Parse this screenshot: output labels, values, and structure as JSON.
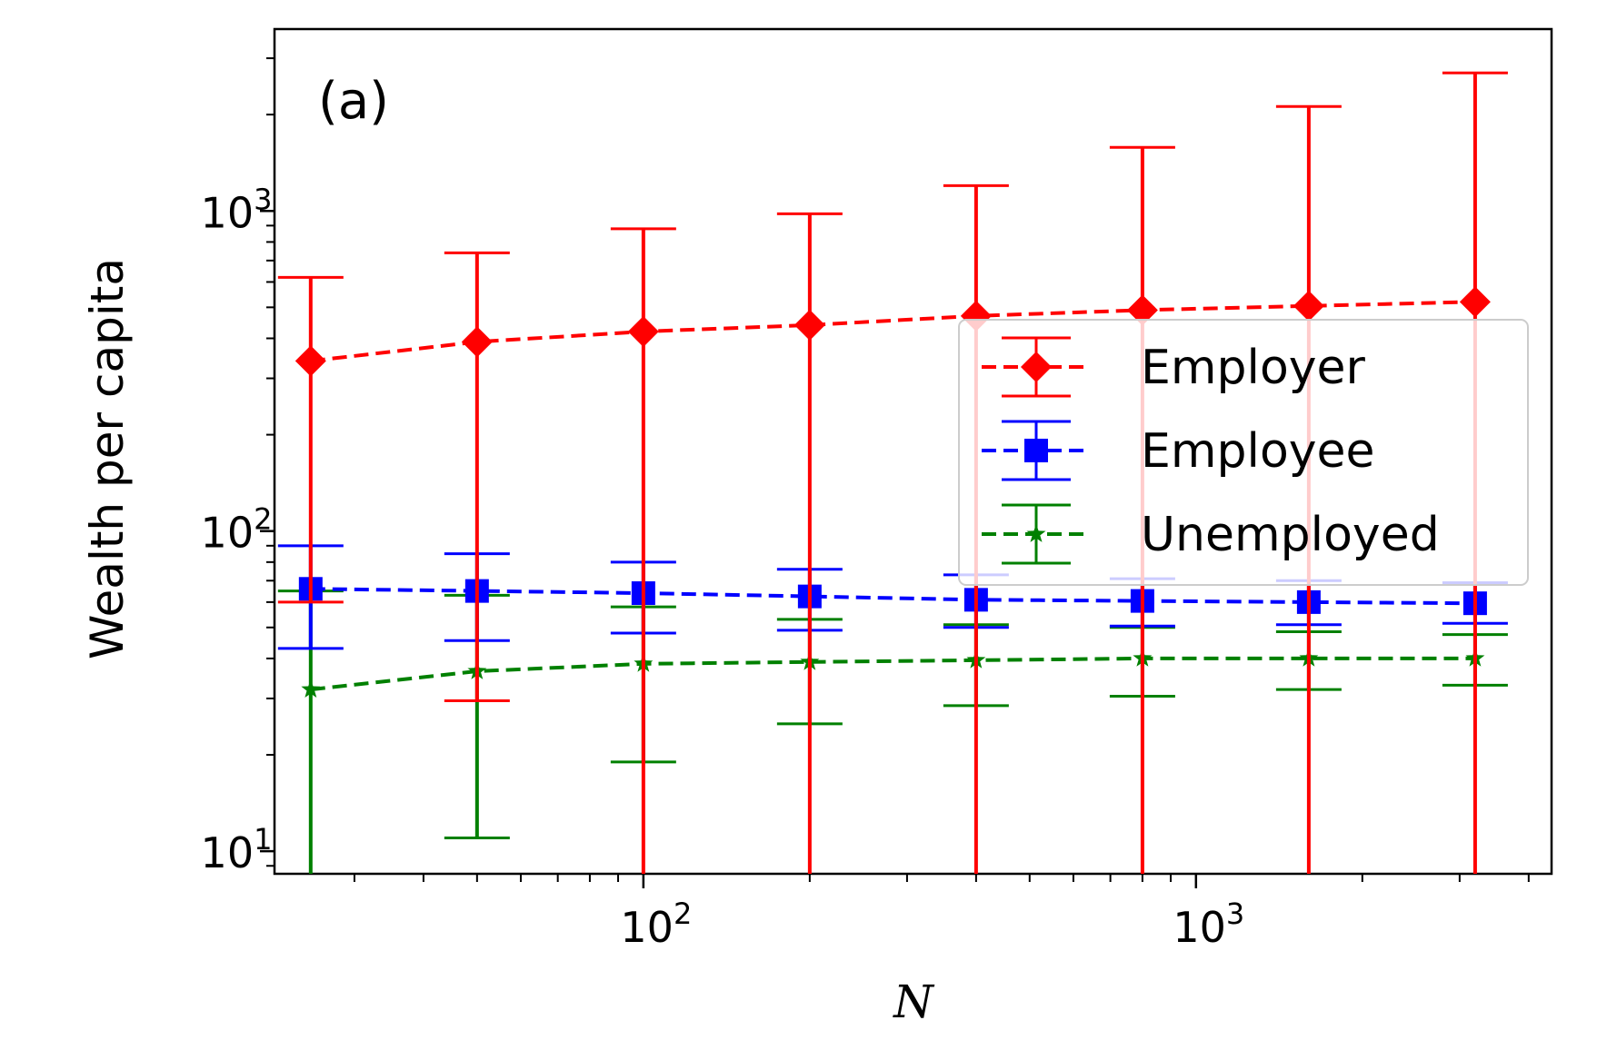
{
  "chart_data": {
    "type": "line",
    "panel_label": "(a)",
    "xlabel": "N",
    "ylabel": "Wealth per capita",
    "xscale": "log",
    "yscale": "log",
    "xlim": [
      21.5,
      4400
    ],
    "ylim": [
      8.5,
      3700
    ],
    "x": [
      25,
      50,
      100,
      200,
      400,
      800,
      1600,
      3200
    ],
    "x_ticks": [
      {
        "value": 100,
        "base": "10",
        "exp": "2"
      },
      {
        "value": 1000,
        "base": "10",
        "exp": "3"
      }
    ],
    "y_ticks": [
      {
        "value": 10,
        "base": "10",
        "exp": "1"
      },
      {
        "value": 100,
        "base": "10",
        "exp": "2"
      },
      {
        "value": 1000,
        "base": "10",
        "exp": "3"
      }
    ],
    "legend_position": "center-right",
    "grid": false,
    "series": [
      {
        "name": "Employer",
        "color": "#ff0000",
        "marker": "diamond",
        "values": [
          340,
          390,
          420,
          440,
          470,
          490,
          505,
          520
        ],
        "upper": [
          620,
          740,
          880,
          980,
          1200,
          1580,
          2120,
          2700
        ],
        "lower": [
          60,
          29.5,
          8.5,
          8.5,
          8.5,
          8.5,
          8.5,
          8.5
        ]
      },
      {
        "name": "Employee",
        "color": "#0000ff",
        "marker": "square",
        "values": [
          66,
          65,
          64,
          62.5,
          61,
          60.5,
          60,
          59.5
        ],
        "upper": [
          90,
          85,
          80,
          76,
          73,
          71,
          70,
          69
        ],
        "lower": [
          43,
          45.5,
          48,
          49,
          50,
          50.5,
          51,
          51.5
        ]
      },
      {
        "name": "Unemployed",
        "color": "#008000",
        "marker": "star",
        "values": [
          32,
          36.5,
          38.5,
          39,
          39.5,
          40,
          40,
          40
        ],
        "upper": [
          65,
          63,
          58,
          53,
          51,
          50,
          48.5,
          47.5
        ],
        "lower": [
          8.5,
          11,
          19,
          25,
          28.5,
          30.5,
          32,
          33
        ]
      }
    ]
  }
}
